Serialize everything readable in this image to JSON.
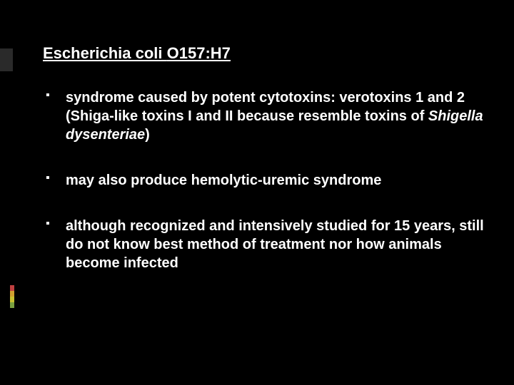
{
  "slide": {
    "title_prefix": "Escherichia coli ",
    "title_suffix": "O157:H7",
    "bullets": [
      {
        "segments": [
          {
            "text": "syndrome caused by potent cytotoxins: verotoxins 1 and 2 (Shiga-like toxins I and II because resemble toxins of ",
            "italic": false
          },
          {
            "text": "Shigella dysenteriae",
            "italic": true
          },
          {
            "text": ")",
            "italic": false
          }
        ]
      },
      {
        "segments": [
          {
            "text": "may also produce hemolytic-uremic syndrome",
            "italic": false
          }
        ]
      },
      {
        "segments": [
          {
            "text": "although recognized and intensively studied for 15 years, still do not know best method of treatment nor how animals become infected",
            "italic": false
          }
        ]
      }
    ]
  },
  "accent_colors": [
    "#c04040",
    "#d0a030",
    "#c8c030",
    "#7aa040"
  ]
}
